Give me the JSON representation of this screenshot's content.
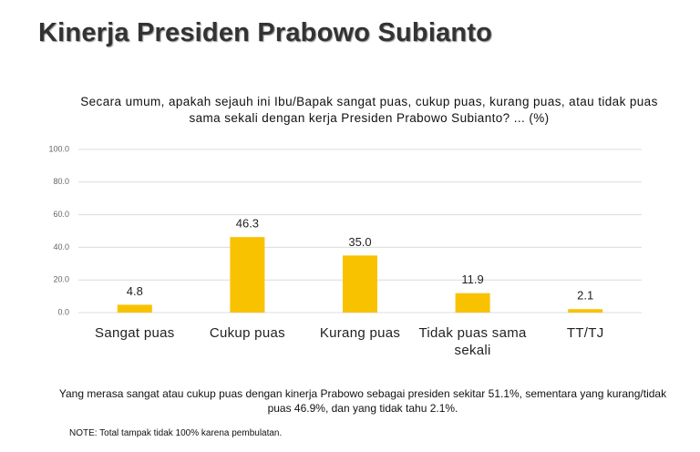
{
  "chart_data": {
    "type": "bar",
    "title": "Kinerja Presiden Prabowo Subianto",
    "subtitle": "Secara umum, apakah sejauh ini Ibu/Bapak sangat puas, cukup puas, kurang puas, atau tidak puas sama sekali dengan kerja Presiden Prabowo Subianto? ... (%)",
    "categories": [
      "Sangat puas",
      "Cukup puas",
      "Kurang puas",
      "Tidak puas sama sekali",
      "TT/TJ"
    ],
    "values": [
      4.8,
      46.3,
      35,
      11.9,
      2.1
    ],
    "value_labels": [
      "4.8",
      "46.3",
      "35.0",
      "11.9",
      "2.1"
    ],
    "color": "#f9c200",
    "ylim": [
      0,
      100
    ],
    "yticks": [
      {
        "value": 0,
        "label": "0.0"
      },
      {
        "value": 20,
        "label": "20.0"
      },
      {
        "value": 40,
        "label": "40.0"
      },
      {
        "value": 60,
        "label": "60.0"
      },
      {
        "value": 80,
        "label": "80.0"
      },
      {
        "value": 100,
        "label": "100.0"
      }
    ],
    "grid": true,
    "annotations": [
      "Yang merasa sangat atau cukup puas dengan kinerja Prabowo sebagai presiden sekitar 51.1%, sementara yang kurang/tidak puas 46.9%, dan yang tidak tahu 2.1%.",
      "NOTE: Total tampak tidak 100% karena pembulatan."
    ]
  }
}
